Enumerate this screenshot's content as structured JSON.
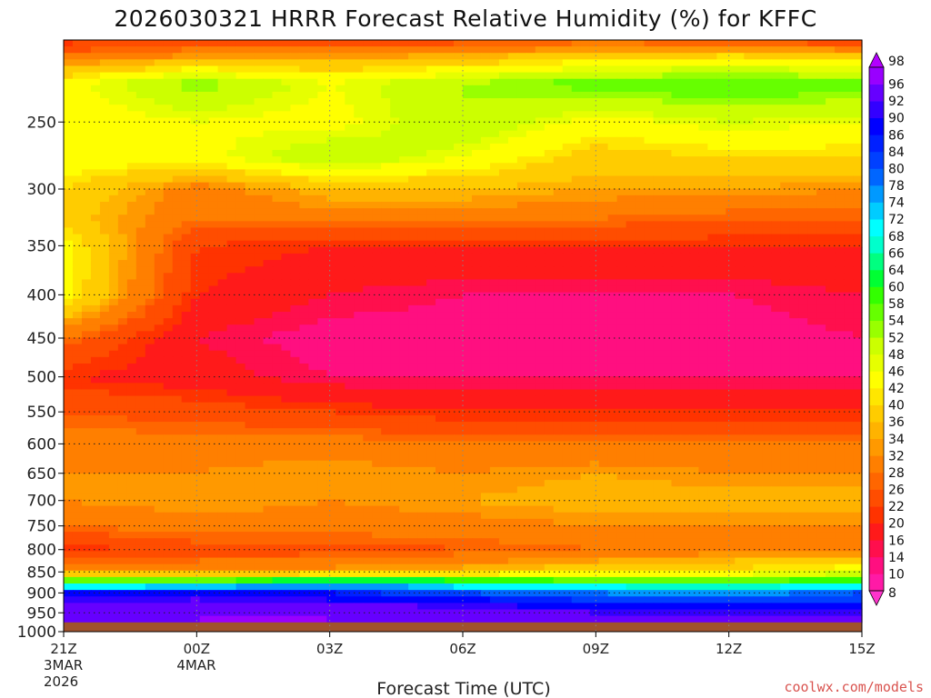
{
  "chart_data": {
    "type": "heatmap",
    "title": "2026030321 HRRR Forecast Relative Humidity (%) for KFFC",
    "xlabel": "Forecast Time (UTC)",
    "ylabel": "",
    "credit": "coolwx.com/models",
    "x_ticks": [
      "21Z",
      "00Z",
      "03Z",
      "06Z",
      "09Z",
      "12Z",
      "15Z"
    ],
    "x_hours": [
      0,
      3,
      6,
      9,
      12,
      15,
      18
    ],
    "x_subticks": [
      {
        "at": "21Z",
        "lines": [
          "3MAR",
          "2026"
        ]
      },
      {
        "at": "00Z",
        "lines": [
          "4MAR"
        ]
      }
    ],
    "y_ticks": [
      250,
      300,
      350,
      400,
      450,
      500,
      550,
      600,
      650,
      700,
      750,
      800,
      850,
      900,
      950,
      1000
    ],
    "y_range_hPa": [
      200,
      1000
    ],
    "y_scale": "log",
    "grid": true,
    "colorbar": {
      "levels": [
        8,
        10,
        14,
        16,
        20,
        22,
        26,
        28,
        32,
        34,
        36,
        40,
        42,
        46,
        48,
        52,
        54,
        58,
        60,
        64,
        66,
        68,
        72,
        74,
        78,
        80,
        84,
        86,
        90,
        92,
        96,
        98
      ],
      "colors": [
        "#ff33cc",
        "#ff1aa6",
        "#ff0f80",
        "#ff0f4d",
        "#ff1a1a",
        "#ff3300",
        "#ff4d00",
        "#ff6600",
        "#ff7f00",
        "#ff9900",
        "#ffb300",
        "#ffcc00",
        "#ffe600",
        "#ffff00",
        "#e6ff00",
        "#ccff00",
        "#99ff00",
        "#66ff00",
        "#33ff00",
        "#00ff33",
        "#00ff80",
        "#00ffcc",
        "#00ffff",
        "#00ccff",
        "#0099ff",
        "#0066ff",
        "#0040ff",
        "#0020ff",
        "#0000ff",
        "#3300ff",
        "#6600ff",
        "#9900ff",
        "#b300ff"
      ]
    },
    "ground_color": "#a0522d",
    "ground_level_hPa": 975,
    "profiles_rh": [
      {
        "hour": 0,
        "pressure": [
          200,
          210,
          225,
          250,
          275,
          300,
          325,
          350,
          400,
          450,
          500,
          550,
          600,
          650,
          700,
          750,
          800,
          850,
          875,
          900,
          925,
          950,
          975
        ],
        "rh": [
          20,
          30,
          44,
          43,
          45,
          40,
          38,
          44,
          44,
          28,
          20,
          26,
          30,
          32,
          32,
          28,
          20,
          32,
          60,
          88,
          92,
          94,
          94
        ]
      },
      {
        "hour": 3,
        "pressure": [
          200,
          210,
          225,
          250,
          275,
          300,
          325,
          350,
          400,
          450,
          500,
          550,
          600,
          650,
          700,
          750,
          800,
          850,
          875,
          900,
          925,
          950,
          975
        ],
        "rh": [
          22,
          34,
          54,
          46,
          44,
          30,
          28,
          22,
          20,
          16,
          18,
          24,
          30,
          32,
          34,
          30,
          24,
          32,
          62,
          88,
          94,
          96,
          96
        ]
      },
      {
        "hour": 6,
        "pressure": [
          200,
          210,
          225,
          250,
          275,
          300,
          325,
          350,
          400,
          450,
          500,
          550,
          600,
          650,
          700,
          750,
          800,
          850,
          875,
          900,
          925,
          950,
          975
        ],
        "rh": [
          22,
          34,
          46,
          44,
          52,
          36,
          30,
          20,
          16,
          12,
          14,
          22,
          30,
          34,
          32,
          30,
          24,
          34,
          72,
          86,
          92,
          96,
          96
        ]
      },
      {
        "hour": 9,
        "pressure": [
          200,
          210,
          225,
          250,
          275,
          300,
          325,
          350,
          400,
          450,
          500,
          550,
          600,
          650,
          700,
          750,
          800,
          850,
          875,
          900,
          925,
          950,
          975
        ],
        "rh": [
          24,
          36,
          52,
          52,
          46,
          36,
          30,
          20,
          14,
          12,
          14,
          20,
          28,
          32,
          34,
          30,
          26,
          36,
          66,
          80,
          90,
          94,
          96
        ]
      },
      {
        "hour": 12,
        "pressure": [
          200,
          210,
          225,
          250,
          275,
          300,
          325,
          350,
          400,
          450,
          500,
          550,
          600,
          650,
          700,
          750,
          800,
          850,
          875,
          900,
          925,
          950,
          975
        ],
        "rh": [
          26,
          40,
          56,
          44,
          38,
          34,
          28,
          20,
          14,
          12,
          14,
          20,
          28,
          34,
          36,
          32,
          28,
          40,
          62,
          78,
          86,
          92,
          94
        ]
      },
      {
        "hour": 15,
        "pressure": [
          200,
          210,
          225,
          250,
          275,
          300,
          325,
          350,
          400,
          450,
          500,
          550,
          600,
          650,
          700,
          750,
          800,
          850,
          875,
          900,
          925,
          950,
          975
        ],
        "rh": [
          24,
          42,
          58,
          48,
          40,
          34,
          26,
          20,
          14,
          12,
          14,
          20,
          28,
          32,
          36,
          32,
          30,
          42,
          60,
          76,
          84,
          92,
          94
        ]
      },
      {
        "hour": 18,
        "pressure": [
          200,
          210,
          225,
          250,
          275,
          300,
          325,
          350,
          400,
          450,
          500,
          550,
          600,
          650,
          700,
          750,
          800,
          850,
          875,
          900,
          925,
          950,
          975
        ],
        "rh": [
          22,
          40,
          56,
          46,
          40,
          32,
          26,
          20,
          16,
          14,
          14,
          20,
          28,
          32,
          36,
          32,
          30,
          46,
          64,
          80,
          86,
          92,
          94
        ]
      }
    ]
  }
}
